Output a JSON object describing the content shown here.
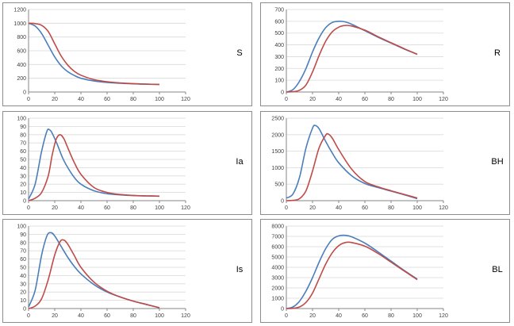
{
  "colors": {
    "blue": "#4a7ebb",
    "red": "#be4b48",
    "grid": "#d9d9d9",
    "axis": "#868686"
  },
  "chart_data": [
    {
      "type": "line",
      "label": "S",
      "xlim": [
        0,
        120
      ],
      "ylim": [
        0,
        1200
      ],
      "xticks": [
        0,
        20,
        40,
        60,
        80,
        100,
        120
      ],
      "yticks": [
        0,
        200,
        400,
        600,
        800,
        1000,
        1200
      ],
      "series": [
        {
          "color": "#4a7ebb",
          "x": [
            0,
            5,
            10,
            15,
            20,
            25,
            30,
            35,
            40,
            50,
            60,
            70,
            80,
            90,
            100
          ],
          "y": [
            1000,
            960,
            850,
            680,
            510,
            380,
            295,
            240,
            200,
            160,
            140,
            127,
            119,
            113,
            110
          ]
        },
        {
          "color": "#be4b48",
          "x": [
            0,
            5,
            10,
            15,
            20,
            25,
            30,
            35,
            40,
            50,
            60,
            70,
            80,
            90,
            100
          ],
          "y": [
            1000,
            995,
            970,
            880,
            700,
            520,
            390,
            300,
            245,
            180,
            150,
            133,
            122,
            115,
            111
          ]
        }
      ]
    },
    {
      "type": "line",
      "label": "R",
      "xlim": [
        0,
        120
      ],
      "ylim": [
        0,
        700
      ],
      "xticks": [
        0,
        20,
        40,
        60,
        80,
        100,
        120
      ],
      "yticks": [
        0,
        100,
        200,
        300,
        400,
        500,
        600,
        700
      ],
      "series": [
        {
          "color": "#4a7ebb",
          "x": [
            0,
            5,
            10,
            15,
            20,
            25,
            30,
            35,
            40,
            45,
            50,
            60,
            70,
            80,
            90,
            100
          ],
          "y": [
            0,
            20,
            90,
            200,
            340,
            460,
            545,
            590,
            600,
            595,
            575,
            520,
            465,
            415,
            365,
            320
          ]
        },
        {
          "color": "#be4b48",
          "x": [
            0,
            5,
            10,
            15,
            20,
            25,
            30,
            35,
            40,
            45,
            50,
            60,
            70,
            80,
            90,
            100
          ],
          "y": [
            0,
            3,
            15,
            60,
            170,
            310,
            430,
            510,
            550,
            565,
            560,
            525,
            470,
            418,
            368,
            320
          ]
        }
      ]
    },
    {
      "type": "line",
      "label": "Ia",
      "xlim": [
        0,
        120
      ],
      "ylim": [
        0,
        100
      ],
      "xticks": [
        0,
        20,
        40,
        60,
        80,
        100,
        120
      ],
      "yticks": [
        0,
        10,
        20,
        30,
        40,
        50,
        60,
        70,
        80,
        90,
        100
      ],
      "series": [
        {
          "color": "#4a7ebb",
          "x": [
            0,
            5,
            10,
            14,
            16,
            18,
            22,
            26,
            30,
            35,
            40,
            50,
            60,
            70,
            80,
            90,
            100
          ],
          "y": [
            2,
            20,
            60,
            84,
            86,
            82,
            68,
            52,
            40,
            28,
            20,
            12,
            8.5,
            7,
            6.2,
            5.8,
            5.5
          ]
        },
        {
          "color": "#be4b48",
          "x": [
            0,
            5,
            10,
            15,
            18,
            21,
            24,
            27,
            30,
            35,
            40,
            50,
            60,
            70,
            80,
            90,
            100
          ],
          "y": [
            0,
            3,
            10,
            30,
            55,
            74,
            80,
            75,
            64,
            46,
            32,
            16,
            10,
            7.5,
            6.3,
            5.8,
            5.5
          ]
        }
      ]
    },
    {
      "type": "line",
      "label": "BH",
      "xlim": [
        0,
        120
      ],
      "ylim": [
        0,
        2500
      ],
      "xticks": [
        0,
        20,
        40,
        60,
        80,
        100,
        120
      ],
      "yticks": [
        0,
        500,
        1000,
        1500,
        2000,
        2500
      ],
      "series": [
        {
          "color": "#4a7ebb",
          "x": [
            0,
            5,
            10,
            15,
            20,
            22,
            25,
            30,
            35,
            40,
            50,
            60,
            70,
            80,
            90,
            100
          ],
          "y": [
            80,
            200,
            700,
            1600,
            2200,
            2280,
            2180,
            1800,
            1450,
            1150,
            750,
            520,
            400,
            290,
            180,
            60
          ]
        },
        {
          "color": "#be4b48",
          "x": [
            0,
            5,
            10,
            15,
            20,
            25,
            30,
            32,
            35,
            40,
            50,
            60,
            70,
            80,
            90,
            100
          ],
          "y": [
            0,
            10,
            60,
            300,
            900,
            1600,
            1980,
            2020,
            1900,
            1550,
            950,
            580,
            420,
            300,
            190,
            80
          ]
        }
      ]
    },
    {
      "type": "line",
      "label": "Is",
      "xlim": [
        0,
        120
      ],
      "ylim": [
        0,
        100
      ],
      "xticks": [
        0,
        20,
        40,
        60,
        80,
        100,
        120
      ],
      "yticks": [
        0,
        10,
        20,
        30,
        40,
        50,
        60,
        70,
        80,
        90,
        100
      ],
      "series": [
        {
          "color": "#4a7ebb",
          "x": [
            0,
            5,
            10,
            14,
            17,
            20,
            25,
            30,
            35,
            40,
            50,
            60,
            70,
            80,
            90,
            100
          ],
          "y": [
            2,
            22,
            65,
            88,
            92,
            88,
            75,
            62,
            51,
            42,
            29,
            20,
            14,
            9,
            5,
            1
          ]
        },
        {
          "color": "#be4b48",
          "x": [
            0,
            5,
            10,
            15,
            20,
            24,
            27,
            30,
            35,
            40,
            50,
            60,
            70,
            80,
            90,
            100
          ],
          "y": [
            0,
            3,
            12,
            35,
            65,
            81,
            83,
            78,
            64,
            50,
            32,
            21,
            14,
            9,
            5,
            1
          ]
        }
      ]
    },
    {
      "type": "line",
      "label": "BL",
      "xlim": [
        0,
        120
      ],
      "ylim": [
        0,
        8000
      ],
      "xticks": [
        0,
        20,
        40,
        60,
        80,
        100,
        120
      ],
      "yticks": [
        0,
        1000,
        2000,
        3000,
        4000,
        5000,
        6000,
        7000,
        8000
      ],
      "series": [
        {
          "color": "#4a7ebb",
          "x": [
            0,
            5,
            10,
            15,
            20,
            25,
            30,
            35,
            40,
            45,
            50,
            60,
            70,
            80,
            90,
            100
          ],
          "y": [
            0,
            150,
            700,
            1700,
            3000,
            4500,
            5800,
            6700,
            7050,
            7100,
            6950,
            6350,
            5500,
            4600,
            3700,
            2850
          ]
        },
        {
          "color": "#be4b48",
          "x": [
            0,
            5,
            10,
            15,
            20,
            25,
            30,
            35,
            40,
            45,
            50,
            60,
            70,
            80,
            90,
            100
          ],
          "y": [
            0,
            20,
            150,
            600,
            1500,
            2900,
            4300,
            5400,
            6100,
            6400,
            6400,
            6050,
            5350,
            4500,
            3650,
            2800
          ]
        }
      ]
    }
  ]
}
